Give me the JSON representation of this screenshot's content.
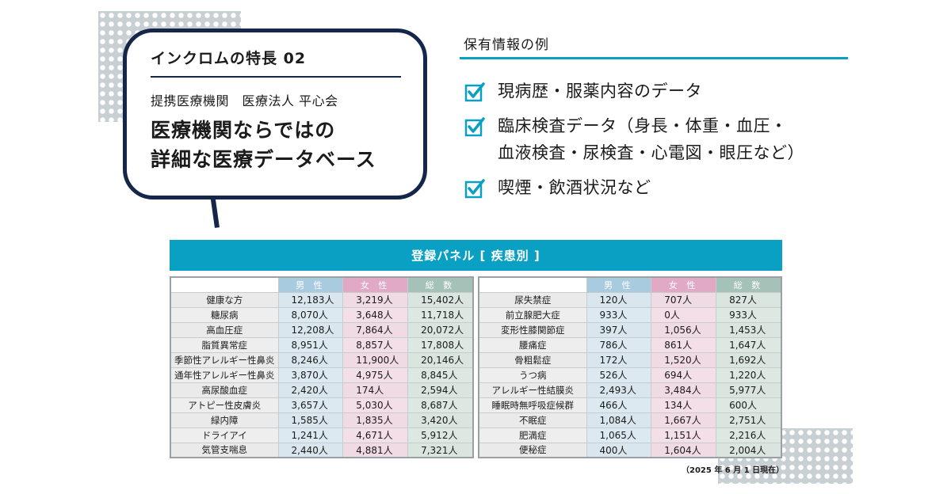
{
  "feature": {
    "title": "インクロムの特長 02",
    "institution": "提携医療機関　医療法人 平心会",
    "headline_line1": "医療機関ならではの",
    "headline_line2": "詳細な医療データベース"
  },
  "info": {
    "title": "保有情報の例",
    "items": [
      {
        "line1": "現病歴・服薬内容のデータ",
        "line2": ""
      },
      {
        "line1": "臨床検査データ（身長・体重・血圧・",
        "line2": "血液検査・尿検査・心電図・眼圧など）"
      },
      {
        "line1": "喫煙・飲酒状況など",
        "line2": ""
      }
    ],
    "icon": "checkbox-checked-icon",
    "accent": "#0aa0c4"
  },
  "panel": {
    "title": "登録パネル [ 疾患別 ]",
    "headers": {
      "male": "男 性",
      "female": "女 性",
      "total": "総 数"
    },
    "left_rows": [
      {
        "name": "健康な方",
        "male": "12,183人",
        "female": "3,219人",
        "total": "15,402人"
      },
      {
        "name": "糖尿病",
        "male": "8,070人",
        "female": "3,648人",
        "total": "11,718人"
      },
      {
        "name": "高血圧症",
        "male": "12,208人",
        "female": "7,864人",
        "total": "20,072人"
      },
      {
        "name": "脂質異常症",
        "male": "8,951人",
        "female": "8,857人",
        "total": "17,808人"
      },
      {
        "name": "季節性アレルギー性鼻炎",
        "male": "8,246人",
        "female": "11,900人",
        "total": "20,146人"
      },
      {
        "name": "通年性アレルギー性鼻炎",
        "male": "3,870人",
        "female": "4,975人",
        "total": "8,845人"
      },
      {
        "name": "高尿酸血症",
        "male": "2,420人",
        "female": "174人",
        "total": "2,594人"
      },
      {
        "name": "アトピー性皮膚炎",
        "male": "3,657人",
        "female": "5,030人",
        "total": "8,687人"
      },
      {
        "name": "緑内障",
        "male": "1,585人",
        "female": "1,835人",
        "total": "3,420人"
      },
      {
        "name": "ドライアイ",
        "male": "1,241人",
        "female": "4,671人",
        "total": "5,912人"
      },
      {
        "name": "気管支喘息",
        "male": "2,440人",
        "female": "4,881人",
        "total": "7,321人"
      }
    ],
    "right_rows": [
      {
        "name": "尿失禁症",
        "male": "120人",
        "female": "707人",
        "total": "827人"
      },
      {
        "name": "前立腺肥大症",
        "male": "933人",
        "female": "0人",
        "total": "933人"
      },
      {
        "name": "変形性膝関節症",
        "male": "397人",
        "female": "1,056人",
        "total": "1,453人"
      },
      {
        "name": "腰痛症",
        "male": "786人",
        "female": "861人",
        "total": "1,647人"
      },
      {
        "name": "骨粗鬆症",
        "male": "172人",
        "female": "1,520人",
        "total": "1,692人"
      },
      {
        "name": "うつ病",
        "male": "526人",
        "female": "694人",
        "total": "1,220人"
      },
      {
        "name": "アレルギー性結膜炎",
        "male": "2,493人",
        "female": "3,484人",
        "total": "5,977人"
      },
      {
        "name": "睡眠時無呼吸症候群",
        "male": "466人",
        "female": "134人",
        "total": "600人"
      },
      {
        "name": "不眠症",
        "male": "1,084人",
        "female": "1,667人",
        "total": "2,751人"
      },
      {
        "name": "肥満症",
        "male": "1,065人",
        "female": "1,151人",
        "total": "2,216人"
      },
      {
        "name": "便秘症",
        "male": "400人",
        "female": "1,604人",
        "total": "2,004人"
      }
    ],
    "as_of": "（2025 年 6 月 1 日現在）"
  }
}
